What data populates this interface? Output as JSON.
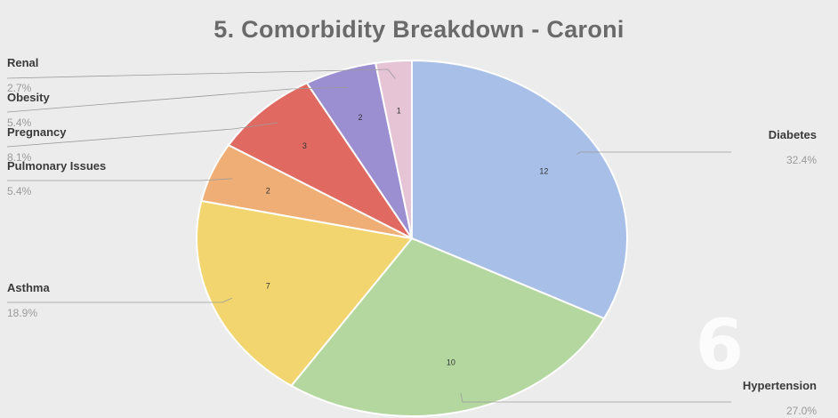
{
  "chart_data": {
    "type": "pie",
    "title": "5. Comorbidity Breakdown - Caroni",
    "slices": [
      {
        "label": "Diabetes",
        "value": 12,
        "percent": "32.4%",
        "color": "#a8bfe8"
      },
      {
        "label": "Hypertension",
        "value": 10,
        "percent": "27.0%",
        "color": "#b4d7a0"
      },
      {
        "label": "Asthma",
        "value": 7,
        "percent": "18.9%",
        "color": "#f2d56e"
      },
      {
        "label": "Pulmonary Issues",
        "value": 2,
        "percent": "5.4%",
        "color": "#eeae76"
      },
      {
        "label": "Pregnancy",
        "value": 3,
        "percent": "8.1%",
        "color": "#e06a62"
      },
      {
        "label": "Obesity",
        "value": 2,
        "percent": "5.4%",
        "color": "#9b8fd2"
      },
      {
        "label": "Renal",
        "value": 1,
        "percent": "2.7%",
        "color": "#e6c4d6"
      }
    ],
    "legend": "none",
    "data_labels": "values inside slices; name and percent outside with leader lines"
  },
  "watermark": "6"
}
